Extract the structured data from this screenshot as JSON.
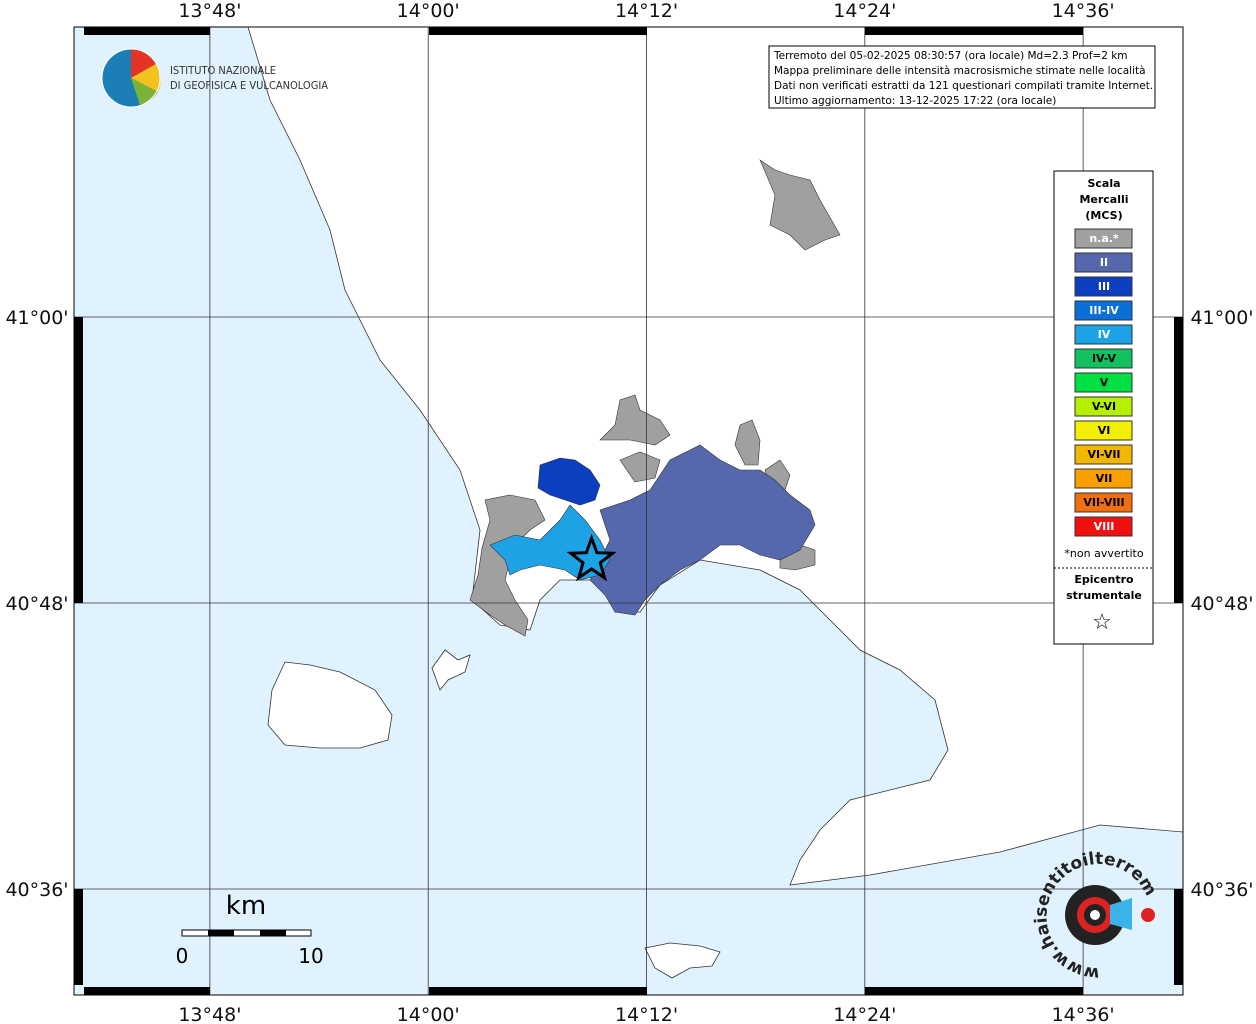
{
  "header": {
    "institute": [
      "ISTITUTO NAZIONALE",
      "DI GEOFISICA E VULCANOLOGIA"
    ]
  },
  "info": [
    "Terremoto del 05-02-2025 08:30:57 (ora locale) Md=2.3 Prof=2 km",
    "Mappa preliminare delle intensità macrosismiche stimate nelle località",
    "Dati non verificati estratti da 121 questionari compilati tramite Internet.",
    "Ultimo aggiornamento: 13-12-2025 17:22 (ora locale)"
  ],
  "map": {
    "lonlim": [
      13.6755,
      14.6915
    ],
    "latlim": [
      40.5259,
      41.2028
    ],
    "lon_ticks": [
      {
        "value": 13.8,
        "label": "13°48'"
      },
      {
        "value": 14.0,
        "label": "14°00'"
      },
      {
        "value": 14.2,
        "label": "14°12'"
      },
      {
        "value": 14.4,
        "label": "14°24'"
      },
      {
        "value": 14.6,
        "label": "14°36'"
      }
    ],
    "lat_ticks": [
      {
        "value": 41.0,
        "label": "41°00'"
      },
      {
        "value": 40.8,
        "label": "40°48'"
      },
      {
        "value": 40.6,
        "label": "40°36'"
      }
    ],
    "epicenter": {
      "lon": 14.1497,
      "lat": 40.8301
    }
  },
  "scale_bar": {
    "unit": "km",
    "labels": [
      "0",
      "10"
    ]
  },
  "legend": {
    "title": [
      "Scala",
      "Mercalli",
      "(MCS)"
    ],
    "items": [
      {
        "label": "n.a.*",
        "color": "#a0a0a0"
      },
      {
        "label": "II",
        "color": "#5567ad"
      },
      {
        "label": "III",
        "color": "#0b3fbf"
      },
      {
        "label": "III-IV",
        "color": "#0a6fd6"
      },
      {
        "label": "IV",
        "color": "#1ea2e6"
      },
      {
        "label": "IV-V",
        "color": "#12c060"
      },
      {
        "label": "V",
        "color": "#00e040"
      },
      {
        "label": "V-VI",
        "color": "#b4f000"
      },
      {
        "label": "VI",
        "color": "#f2f000"
      },
      {
        "label": "VI-VII",
        "color": "#f2b800"
      },
      {
        "label": "VII",
        "color": "#f8a000"
      },
      {
        "label": "VII-VIII",
        "color": "#f07010"
      },
      {
        "label": "VIII",
        "color": "#f01010"
      }
    ],
    "note": "*non avvertito",
    "epicenter_label": [
      "Epicentro",
      "strumentale"
    ],
    "epicenter_symbol": "☆"
  },
  "logo": {
    "text": "www.haisentitoilterremoto.it"
  }
}
